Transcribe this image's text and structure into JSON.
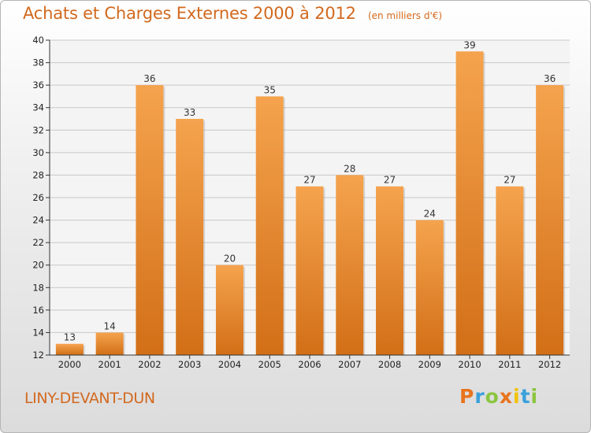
{
  "chart_data": {
    "type": "bar",
    "title": "Achats et Charges Externes 2000 à 2012",
    "subtitle": "(en milliers d'€)",
    "categories": [
      "2000",
      "2001",
      "2002",
      "2003",
      "2004",
      "2005",
      "2006",
      "2007",
      "2008",
      "2009",
      "2010",
      "2011",
      "2012"
    ],
    "values": [
      13,
      14,
      36,
      33,
      20,
      35,
      27,
      28,
      27,
      24,
      39,
      27,
      36
    ],
    "ylim": [
      12,
      40
    ],
    "yticks": [
      12,
      14,
      16,
      18,
      20,
      22,
      24,
      26,
      28,
      30,
      32,
      34,
      36,
      38,
      40
    ],
    "grid": true,
    "bar_color_light": "#f5a34e",
    "bar_color_dark": "#d26f17"
  },
  "footer": {
    "location": "LINY-DEVANT-DUN",
    "brand": "Proxiti",
    "brand_colors": [
      "#e8741e",
      "#3aa0dc",
      "#8bc53f",
      "#e8741e",
      "#f2c300",
      "#3aa0dc",
      "#8bc53f"
    ]
  },
  "colors": {
    "title": "#d2691e",
    "axis": "#333333",
    "grid": "#c8c8c8"
  }
}
